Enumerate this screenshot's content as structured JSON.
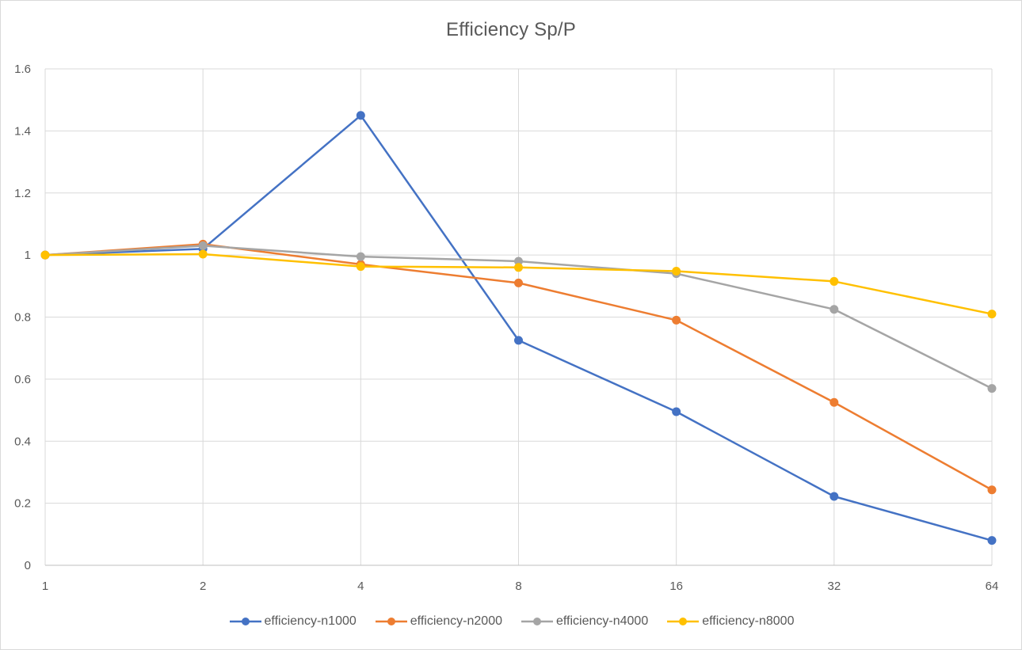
{
  "chart_data": {
    "type": "line",
    "title": "Efficiency Sp/P",
    "x": [
      "1",
      "2",
      "4",
      "8",
      "16",
      "32",
      "64"
    ],
    "ylim": [
      0,
      1.6
    ],
    "yticks": [
      "0",
      "0.2",
      "0.4",
      "0.6",
      "0.8",
      "1",
      "1.2",
      "1.4",
      "1.6"
    ],
    "grid": true,
    "legend_position": "bottom",
    "series": [
      {
        "name": "efficiency-n1000",
        "color": "#4472C4",
        "values": [
          1.0,
          1.02,
          1.45,
          0.725,
          0.495,
          0.222,
          0.08
        ]
      },
      {
        "name": "efficiency-n2000",
        "color": "#ED7D31",
        "values": [
          1.0,
          1.035,
          0.97,
          0.91,
          0.79,
          0.525,
          0.243
        ]
      },
      {
        "name": "efficiency-n4000",
        "color": "#A5A5A5",
        "values": [
          1.0,
          1.03,
          0.995,
          0.98,
          0.94,
          0.825,
          0.57
        ]
      },
      {
        "name": "efficiency-n8000",
        "color": "#FFC000",
        "values": [
          1.0,
          1.003,
          0.963,
          0.96,
          0.948,
          0.915,
          0.81
        ]
      }
    ]
  }
}
